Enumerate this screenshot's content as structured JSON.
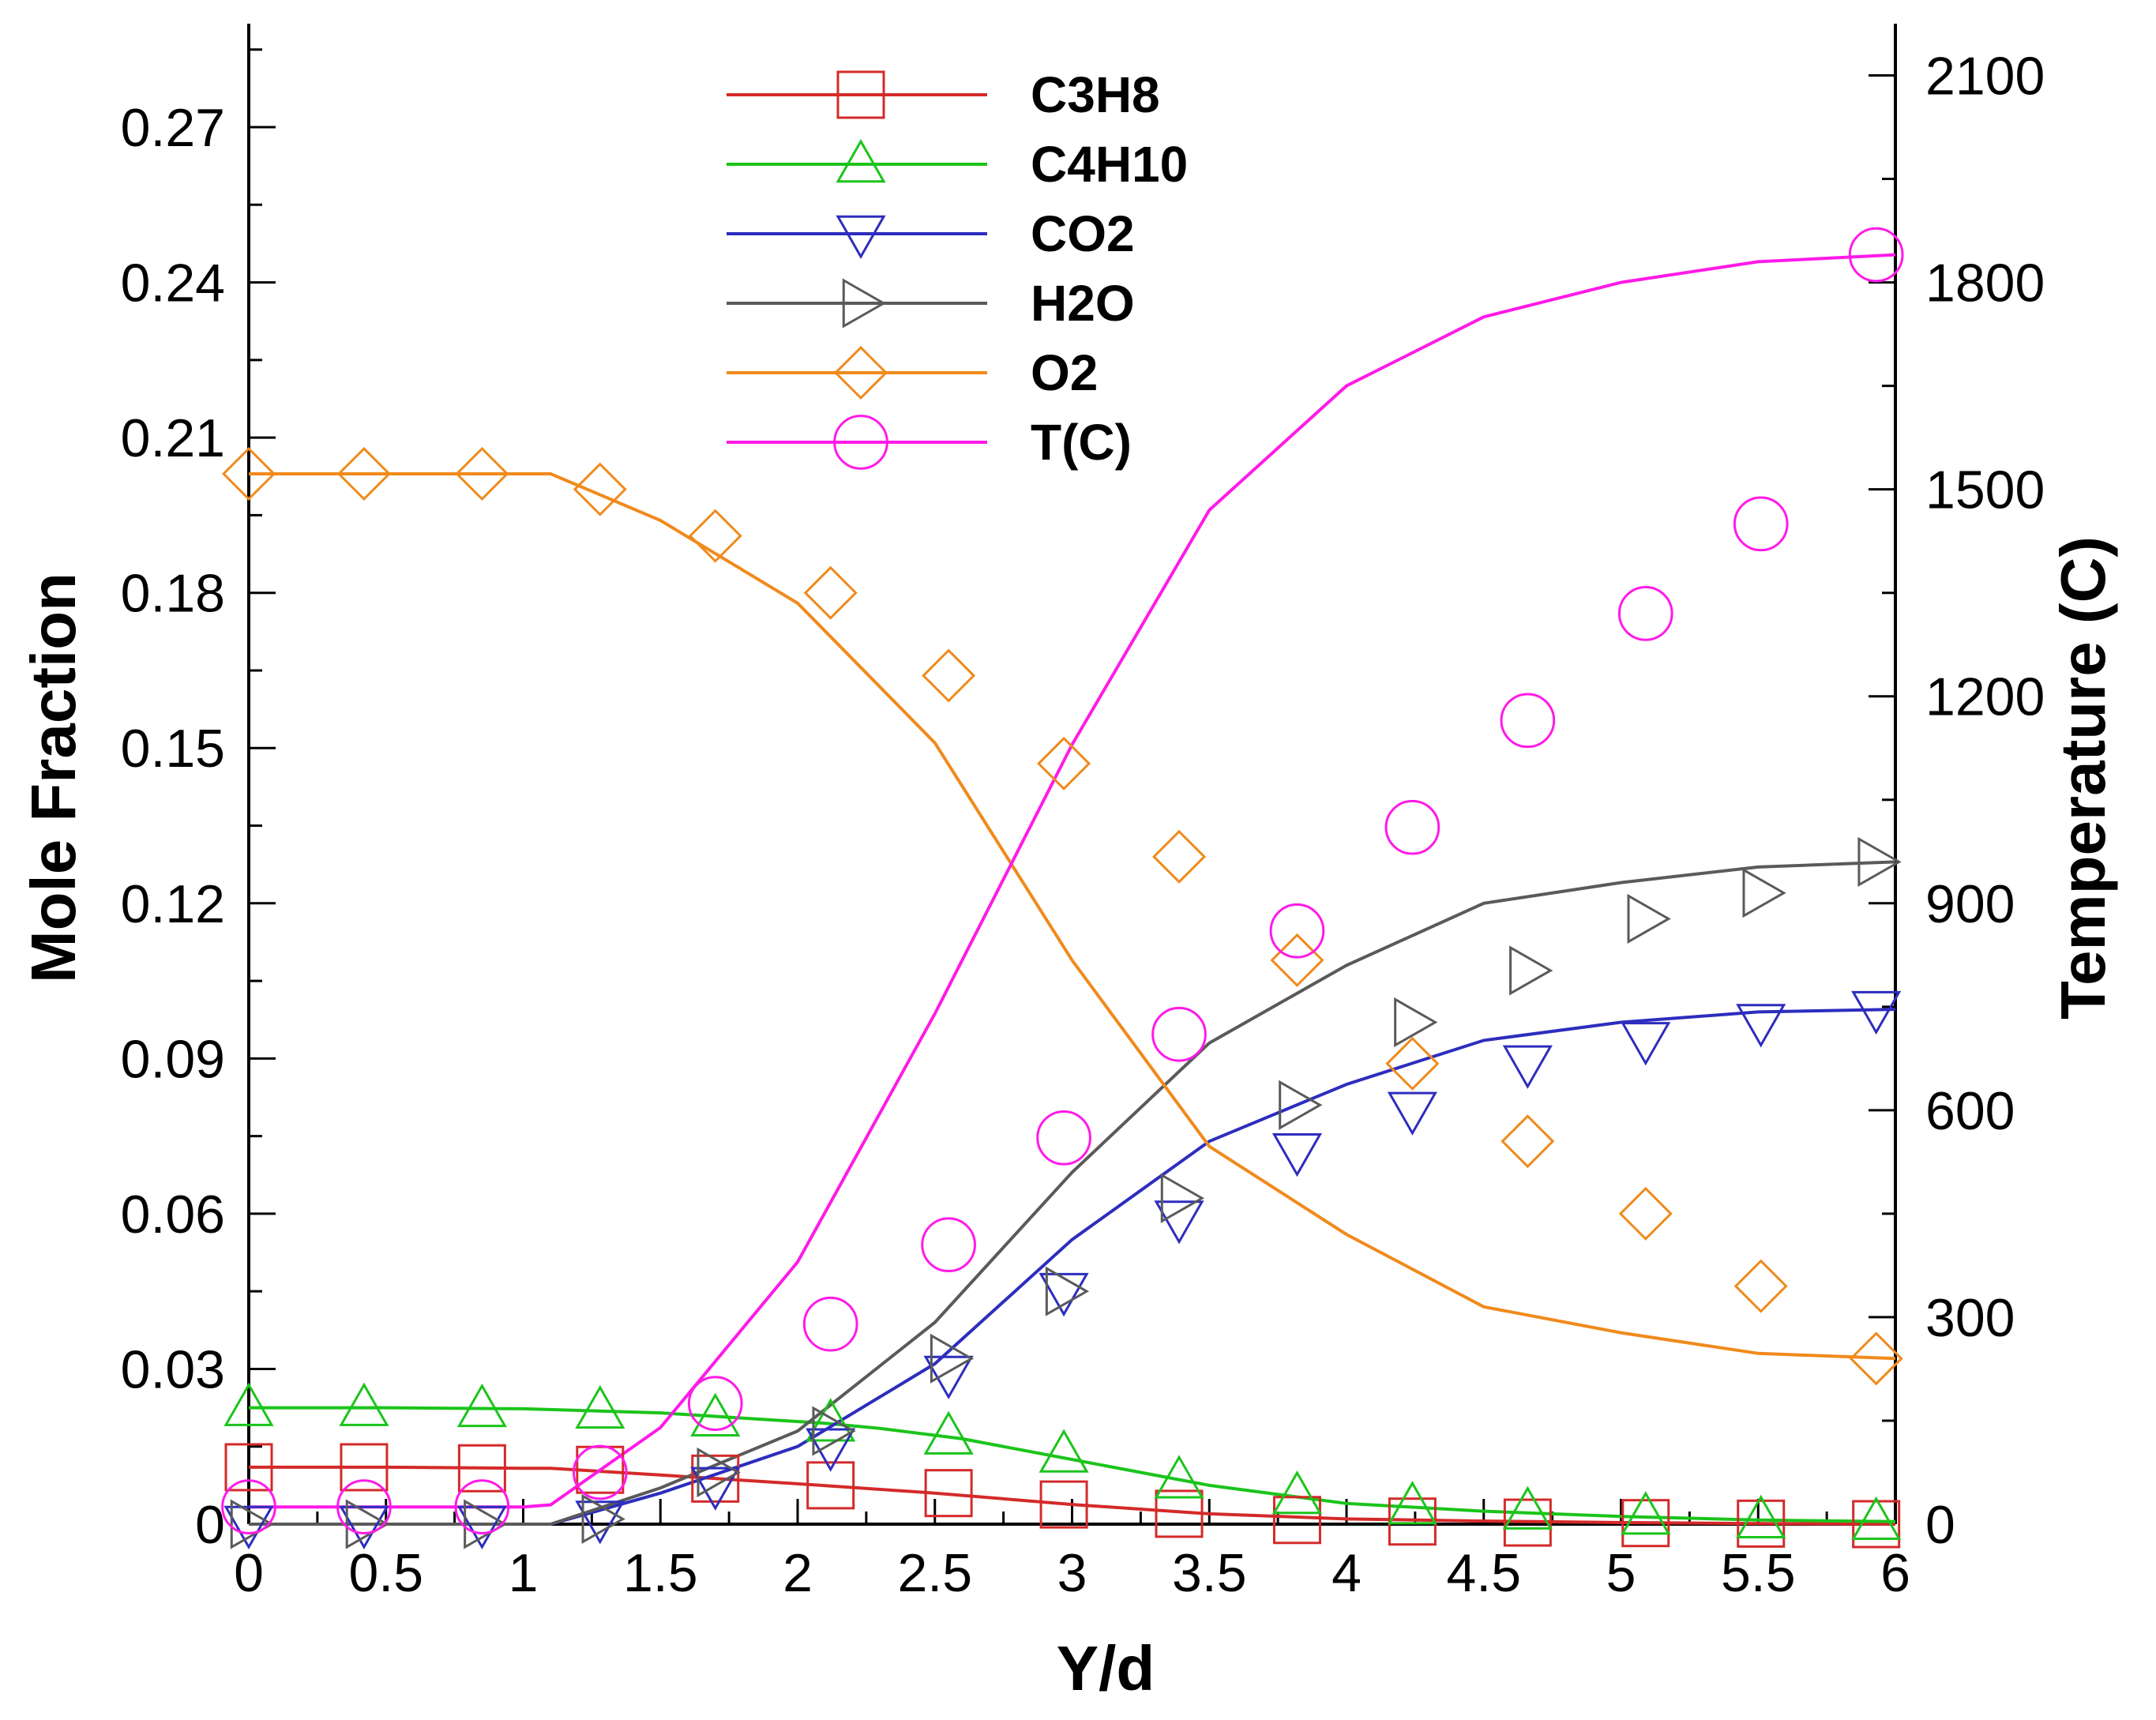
{
  "chart_data": {
    "type": "line",
    "title": "",
    "xlabel": "Y/d",
    "ylabel_left": "Mole Fraction",
    "ylabel_right": "Temperature (C)",
    "xlim": [
      0,
      6
    ],
    "ylim_left": [
      0,
      0.29
    ],
    "ylim_right": [
      0,
      2175
    ],
    "x_ticks": [
      "0",
      "0.5",
      "1",
      "1.5",
      "2",
      "2.5",
      "3",
      "3.5",
      "4",
      "4.5",
      "5",
      "5.5",
      "6"
    ],
    "x_tick_values": [
      0,
      0.5,
      1,
      1.5,
      2,
      2.5,
      3,
      3.5,
      4,
      4.5,
      5,
      5.5,
      6
    ],
    "y_left_ticks": [
      "0",
      "0.03",
      "0.06",
      "0.09",
      "0.12",
      "0.15",
      "0.18",
      "0.21",
      "0.24",
      "0.27"
    ],
    "y_left_tick_values": [
      0,
      0.03,
      0.06,
      0.09,
      0.12,
      0.15,
      0.18,
      0.21,
      0.24,
      0.27
    ],
    "y_right_ticks": [
      "0",
      "300",
      "600",
      "900",
      "1200",
      "1500",
      "1800",
      "2100"
    ],
    "y_right_tick_values": [
      0,
      300,
      600,
      900,
      1200,
      1500,
      1800,
      2100
    ],
    "grid": false,
    "legend_position": "top-center",
    "series": [
      {
        "name": "C3H8",
        "axis": "left",
        "color": "#d42a2a",
        "marker": "square",
        "x": [
          0,
          0.5,
          1,
          1.1,
          1.5,
          2,
          2.5,
          3,
          3.5,
          4,
          4.5,
          5,
          5.5,
          6
        ],
        "y": [
          0.011,
          0.011,
          0.0108,
          0.0108,
          0.0095,
          0.0078,
          0.006,
          0.0038,
          0.002,
          0.001,
          0.0006,
          0.0003,
          0.0001,
          0.0
        ],
        "marker_x": [
          0,
          0.42,
          0.85,
          1.28,
          1.7,
          2.12,
          2.55,
          2.97,
          3.39,
          3.82,
          4.24,
          4.66,
          5.09,
          5.51,
          5.93
        ],
        "marker_y": [
          0.011,
          0.011,
          0.0108,
          0.0105,
          0.0088,
          0.0075,
          0.006,
          0.0038,
          0.002,
          0.0008,
          0.0005,
          0.0003,
          0.0002,
          0.0001,
          0.0
        ]
      },
      {
        "name": "C4H10",
        "axis": "left",
        "color": "#1bc41b",
        "marker": "triangle-up",
        "x": [
          0,
          0.5,
          1,
          1.5,
          1.8,
          2.1,
          2.3,
          2.6,
          3.0,
          3.5,
          4,
          4.5,
          5,
          5.5,
          6
        ],
        "y": [
          0.0225,
          0.0225,
          0.0223,
          0.0215,
          0.0205,
          0.0195,
          0.0185,
          0.0165,
          0.0125,
          0.0075,
          0.004,
          0.0025,
          0.0015,
          0.0008,
          0.0005
        ],
        "marker_x": [
          0,
          0.42,
          0.85,
          1.28,
          1.7,
          2.12,
          2.55,
          2.97,
          3.39,
          3.82,
          4.24,
          4.66,
          5.09,
          5.51,
          5.93
        ],
        "marker_y": [
          0.0225,
          0.0225,
          0.0223,
          0.022,
          0.0205,
          0.0195,
          0.017,
          0.0135,
          0.0085,
          0.0055,
          0.0035,
          0.0025,
          0.0015,
          0.0008,
          0.0005
        ]
      },
      {
        "name": "CO2",
        "axis": "left",
        "color": "#2d2dbe",
        "marker": "triangle-down",
        "x": [
          0,
          0.5,
          1,
          1.1,
          1.5,
          2,
          2.5,
          3,
          3.5,
          4,
          4.5,
          5,
          5.5,
          6
        ],
        "y": [
          0,
          0,
          0,
          0,
          0.006,
          0.015,
          0.031,
          0.055,
          0.074,
          0.085,
          0.0935,
          0.097,
          0.099,
          0.0995
        ],
        "marker_x": [
          0,
          0.42,
          0.85,
          1.28,
          1.7,
          2.12,
          2.55,
          2.97,
          3.39,
          3.82,
          4.24,
          4.66,
          5.09,
          5.51,
          5.93
        ],
        "marker_y": [
          0,
          0,
          0,
          0.001,
          0.0075,
          0.015,
          0.029,
          0.045,
          0.059,
          0.072,
          0.08,
          0.089,
          0.0935,
          0.097,
          0.0995
        ]
      },
      {
        "name": "H2O",
        "axis": "left",
        "color": "#5a5a5a",
        "marker": "triangle-right",
        "x": [
          0,
          0.5,
          1,
          1.1,
          1.5,
          2,
          2.5,
          3,
          3.5,
          4,
          4.5,
          5,
          5.5,
          6
        ],
        "y": [
          0,
          0,
          0,
          0,
          0.007,
          0.018,
          0.039,
          0.068,
          0.093,
          0.108,
          0.12,
          0.124,
          0.127,
          0.128
        ],
        "marker_x": [
          0,
          0.42,
          0.85,
          1.28,
          1.7,
          2.12,
          2.55,
          2.97,
          3.39,
          3.82,
          4.24,
          4.66,
          5.09,
          5.51,
          5.93
        ],
        "marker_y": [
          0,
          0,
          0,
          0.001,
          0.01,
          0.018,
          0.032,
          0.045,
          0.063,
          0.081,
          0.097,
          0.107,
          0.117,
          0.122,
          0.128
        ]
      },
      {
        "name": "O2",
        "axis": "left",
        "color": "#f08a1c",
        "marker": "diamond",
        "x": [
          0,
          0.5,
          1,
          1.1,
          1.5,
          2,
          2.5,
          3,
          3.5,
          4,
          4.5,
          5,
          5.5,
          6
        ],
        "y": [
          0.203,
          0.203,
          0.203,
          0.203,
          0.194,
          0.178,
          0.151,
          0.109,
          0.073,
          0.056,
          0.042,
          0.037,
          0.033,
          0.032
        ],
        "marker_x": [
          0,
          0.42,
          0.85,
          1.28,
          1.7,
          2.12,
          2.55,
          2.97,
          3.39,
          3.82,
          4.24,
          4.66,
          5.09,
          5.51,
          5.93
        ],
        "marker_y": [
          0.203,
          0.203,
          0.203,
          0.2,
          0.191,
          0.18,
          0.164,
          0.147,
          0.129,
          0.109,
          0.089,
          0.074,
          0.06,
          0.046,
          0.032
        ]
      },
      {
        "name": "T(C)",
        "axis": "right",
        "color": "#ff1ae8",
        "marker": "circle",
        "x": [
          0,
          0.5,
          1,
          1.1,
          1.5,
          2,
          2.5,
          3,
          3.5,
          4,
          4.5,
          5,
          5.5,
          6
        ],
        "y": [
          25,
          25,
          25,
          28,
          140,
          380,
          740,
          1130,
          1470,
          1650,
          1750,
          1800,
          1830,
          1840
        ],
        "marker_x": [
          0,
          0.42,
          0.85,
          1.28,
          1.7,
          2.12,
          2.55,
          2.97,
          3.39,
          3.82,
          4.24,
          4.66,
          5.09,
          5.51,
          5.93
        ],
        "marker_y": [
          25,
          25,
          25,
          75,
          175,
          290,
          405,
          560,
          710,
          860,
          1010,
          1165,
          1320,
          1450,
          1840
        ]
      }
    ]
  }
}
